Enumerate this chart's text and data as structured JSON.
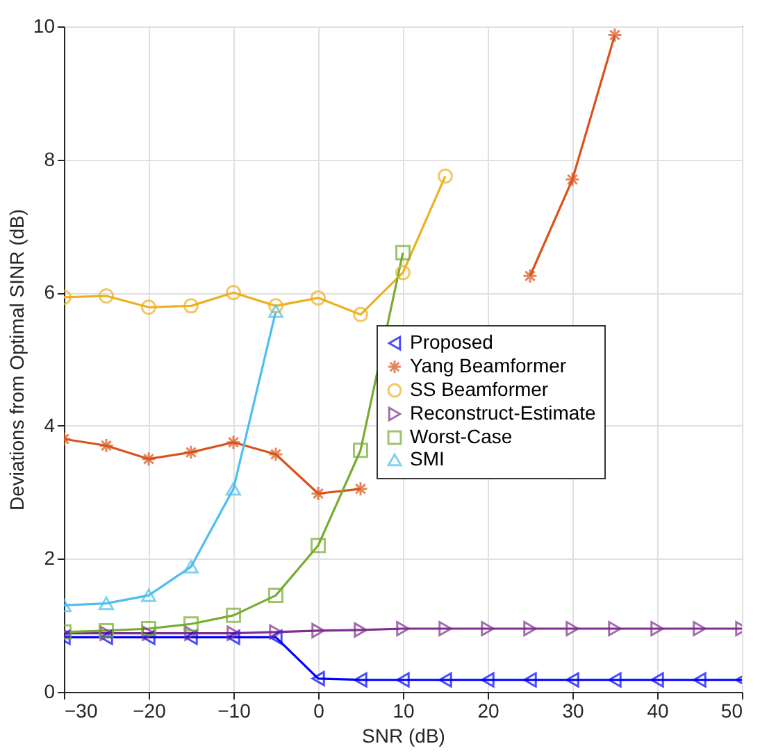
{
  "chart_data": {
    "type": "line",
    "xlabel": "SNR (dB)",
    "ylabel": "Deviations from Optimal SINR (dB)",
    "x": [
      -30,
      -25,
      -20,
      -15,
      -10,
      -5,
      0,
      5,
      10,
      15,
      20,
      25,
      30,
      35,
      40,
      45,
      50
    ],
    "series": [
      {
        "name": "Proposed",
        "color": "#0000ff",
        "marker": "triangle-left",
        "values": [
          0.82,
          0.82,
          0.82,
          0.82,
          0.82,
          0.82,
          0.2,
          0.18,
          0.18,
          0.18,
          0.18,
          0.18,
          0.18,
          0.18,
          0.18,
          0.18,
          0.18
        ]
      },
      {
        "name": "Yang Beamformer",
        "color": "#d95319",
        "marker": "cross",
        "values": [
          3.8,
          3.7,
          3.5,
          3.6,
          3.75,
          3.57,
          2.98,
          3.05,
          null,
          null,
          null,
          6.25,
          7.7,
          9.87,
          null,
          null,
          null
        ]
      },
      {
        "name": "SS Beamformer",
        "color": "#edb120",
        "marker": "circle",
        "values": [
          5.93,
          5.95,
          5.78,
          5.8,
          6.0,
          5.8,
          5.92,
          5.67,
          6.3,
          7.75,
          null,
          null,
          null,
          null,
          null,
          null,
          null
        ]
      },
      {
        "name": "Reconstruct-Estimate",
        "color": "#7e2f8e",
        "marker": "triangle-right",
        "values": [
          0.88,
          0.88,
          0.88,
          0.88,
          0.88,
          0.9,
          0.92,
          0.93,
          0.95,
          0.95,
          0.95,
          0.95,
          0.95,
          0.95,
          0.95,
          0.95,
          0.95
        ]
      },
      {
        "name": "Worst-Case",
        "color": "#77ac30",
        "marker": "square",
        "values": [
          0.9,
          0.92,
          0.95,
          1.02,
          1.15,
          1.45,
          2.2,
          3.63,
          6.6,
          null,
          null,
          null,
          null,
          null,
          null,
          null,
          null
        ]
      },
      {
        "name": "SMI",
        "color": "#4dbeee",
        "marker": "triangle",
        "values": [
          1.3,
          1.33,
          1.45,
          1.88,
          3.05,
          5.72,
          null,
          null,
          null,
          null,
          null,
          null,
          null,
          null,
          null,
          null,
          null
        ]
      }
    ],
    "xlim": [
      -30,
      50
    ],
    "xticks": [
      -30,
      -20,
      -10,
      0,
      10,
      20,
      30,
      40,
      50
    ],
    "ylim": [
      0,
      10
    ],
    "yticks": [
      0,
      2,
      4,
      6,
      8,
      10
    ],
    "grid": true,
    "legend": "right",
    "line_style": "solid"
  }
}
